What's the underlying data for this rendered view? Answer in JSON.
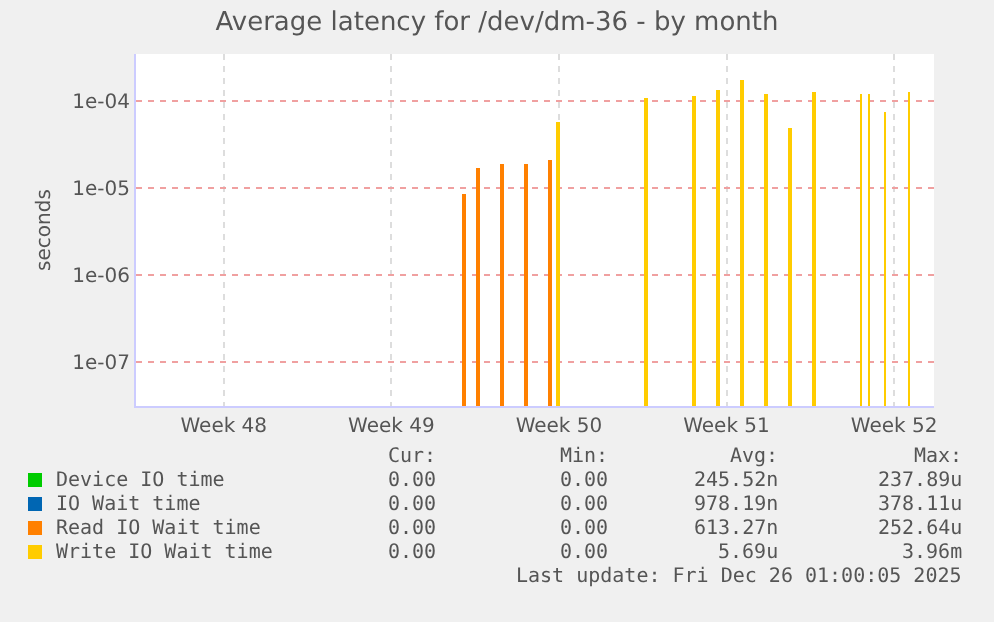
{
  "chart_data": {
    "type": "bar",
    "title": "Average latency for /dev/dm-36 - by month",
    "ylabel": "seconds",
    "log": "y",
    "ylim": [
      3.1e-08,
      0.00035
    ],
    "yticks": [
      {
        "value": 1e-07,
        "label": "1e-07"
      },
      {
        "value": 1e-06,
        "label": "1e-06"
      },
      {
        "value": 1e-05,
        "label": "1e-05"
      },
      {
        "value": 0.0001,
        "label": "1e-04"
      }
    ],
    "xlim": [
      "2025-11-23T17:00",
      "2025-12-27T01:00"
    ],
    "xticks": [
      {
        "value": "2025-11-27T09:00",
        "label": "Week 48"
      },
      {
        "value": "2025-12-04T09:00",
        "label": "Week 49"
      },
      {
        "value": "2025-12-11T09:00",
        "label": "Week 50"
      },
      {
        "value": "2025-12-18T09:00",
        "label": "Week 51"
      },
      {
        "value": "2025-12-25T09:00",
        "label": "Week 52"
      }
    ],
    "grid": true,
    "legend": "bottom",
    "series": [
      {
        "name": "Device IO time",
        "color": "#00cc00"
      },
      {
        "name": "IO Wait time",
        "color": "#0066b3"
      },
      {
        "name": "Read IO Wait time",
        "color": "#ff8000",
        "x": [
          "2025-12-07T10:00",
          "2025-12-08T00:00",
          "2025-12-09T00:00",
          "2025-12-10T00:00",
          "2025-12-11T00:00"
        ],
        "values": [
          8.4e-06,
          1.7e-05,
          1.9e-05,
          1.9e-05,
          2.1e-05
        ]
      },
      {
        "name": "Write IO Wait time",
        "color": "#ffcc00",
        "x": [
          "2025-12-11T08:00",
          "2025-12-15T00:00",
          "2025-12-17T00:00",
          "2025-12-18T00:00",
          "2025-12-19T00:00",
          "2025-12-20T00:00",
          "2025-12-21T00:00",
          "2025-12-22T01:00",
          "2025-12-24T00:00",
          "2025-12-24T08:00",
          "2025-12-25T00:00",
          "2025-12-26T00:00"
        ],
        "values": [
          5.8e-05,
          0.00011,
          0.000115,
          0.000135,
          0.00018,
          0.00012,
          4.9e-05,
          0.00013,
          0.00012,
          0.00012,
          7.5e-05,
          0.00013
        ]
      }
    ],
    "annotations": [
      "Cur:",
      "Min:",
      "Avg:",
      "Max:",
      "0.00",
      "0.00",
      "245.52n",
      "237.89u",
      "0.00",
      "0.00",
      "978.19n",
      "378.11u",
      "0.00",
      "0.00",
      "613.27n",
      "252.64u",
      "0.00",
      "0.00",
      "5.69u",
      "3.96m",
      "Last update: Fri Dec 26 01:00:05 2025"
    ]
  }
}
